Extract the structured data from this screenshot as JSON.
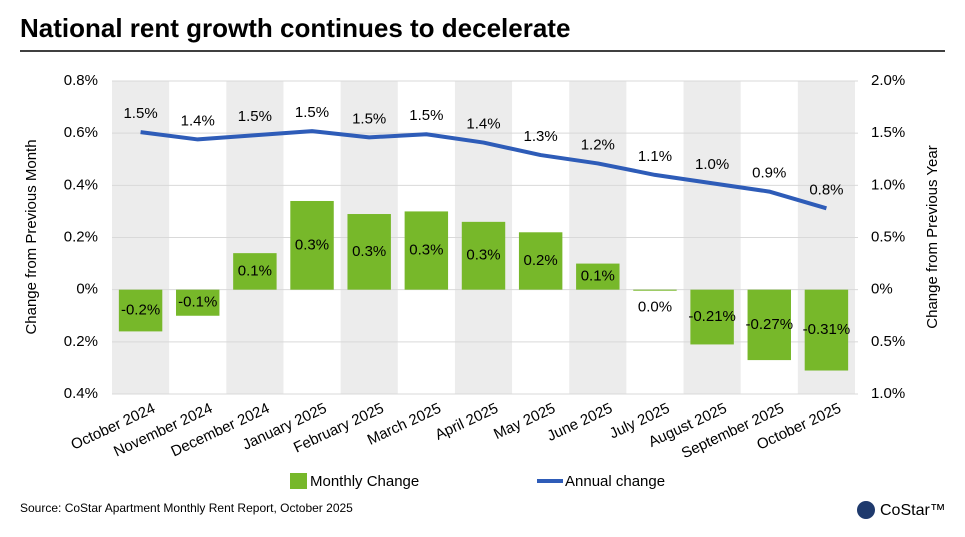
{
  "chart_data": {
    "type": "bar",
    "title": "National rent growth continues to decelerate",
    "ylabel": "Change from Previous Month",
    "y2label": "Change from Previous Year",
    "source": "Source: CoStar Apartment Monthly Rent Report, October 2025",
    "logo": "CoStar™",
    "categories": [
      "October 2024",
      "November 2024",
      "December 2024",
      "January 2025",
      "February 2025",
      "March 2025",
      "April 2025",
      "May 2025",
      "June 2025",
      "July 2025",
      "August 2025",
      "September 2025",
      "October 2025"
    ],
    "series": [
      {
        "name": "Monthly Change",
        "type": "bar",
        "axis": "y",
        "color": "#77b82a",
        "values": [
          -0.16,
          -0.1,
          0.14,
          0.34,
          0.29,
          0.3,
          0.26,
          0.22,
          0.1,
          -0.004,
          -0.21,
          -0.27,
          -0.31
        ],
        "value_labels": [
          "-0.2%",
          "-0.1%",
          "0.1%",
          "0.3%",
          "0.3%",
          "0.3%",
          "0.3%",
          "0.2%",
          "0.1%",
          "0.0%",
          "-0.21%",
          "-0.27%",
          "-0.31%"
        ]
      },
      {
        "name": "Annual change",
        "type": "line",
        "axis": "y2",
        "color": "#2e5cb8",
        "values": [
          1.51,
          1.44,
          1.48,
          1.52,
          1.46,
          1.49,
          1.41,
          1.29,
          1.21,
          1.1,
          1.02,
          0.94,
          0.78
        ],
        "value_labels": [
          "1.5%",
          "1.4%",
          "1.5%",
          "1.5%",
          "1.5%",
          "1.5%",
          "1.4%",
          "1.3%",
          "1.2%",
          "1.1%",
          "1.0%",
          "0.9%",
          "0.8%"
        ]
      }
    ],
    "ylim": [
      -0.4,
      0.8
    ],
    "yticks": [
      {
        "value": -0.4,
        "label": "0.4%"
      },
      {
        "value": -0.2,
        "label": "0.2%"
      },
      {
        "value": 0,
        "label": "0%"
      },
      {
        "value": 0.2,
        "label": "0.2%"
      },
      {
        "value": 0.4,
        "label": "0.4%"
      },
      {
        "value": 0.6,
        "label": "0.6%"
      },
      {
        "value": 0.8,
        "label": "0.8%"
      }
    ],
    "y2lim": [
      -1.0,
      2.0
    ],
    "y2ticks": [
      {
        "value": -1.0,
        "label": "1.0%"
      },
      {
        "value": -0.5,
        "label": "0.5%"
      },
      {
        "value": 0,
        "label": "0%"
      },
      {
        "value": 0.5,
        "label": "0.5%"
      },
      {
        "value": 1.0,
        "label": "1.0%"
      },
      {
        "value": 1.5,
        "label": "1.5%"
      },
      {
        "value": 2.0,
        "label": "2.0%"
      }
    ],
    "negative_tick_color": "#c00000",
    "band_shading": "#ececec",
    "grid": true
  }
}
